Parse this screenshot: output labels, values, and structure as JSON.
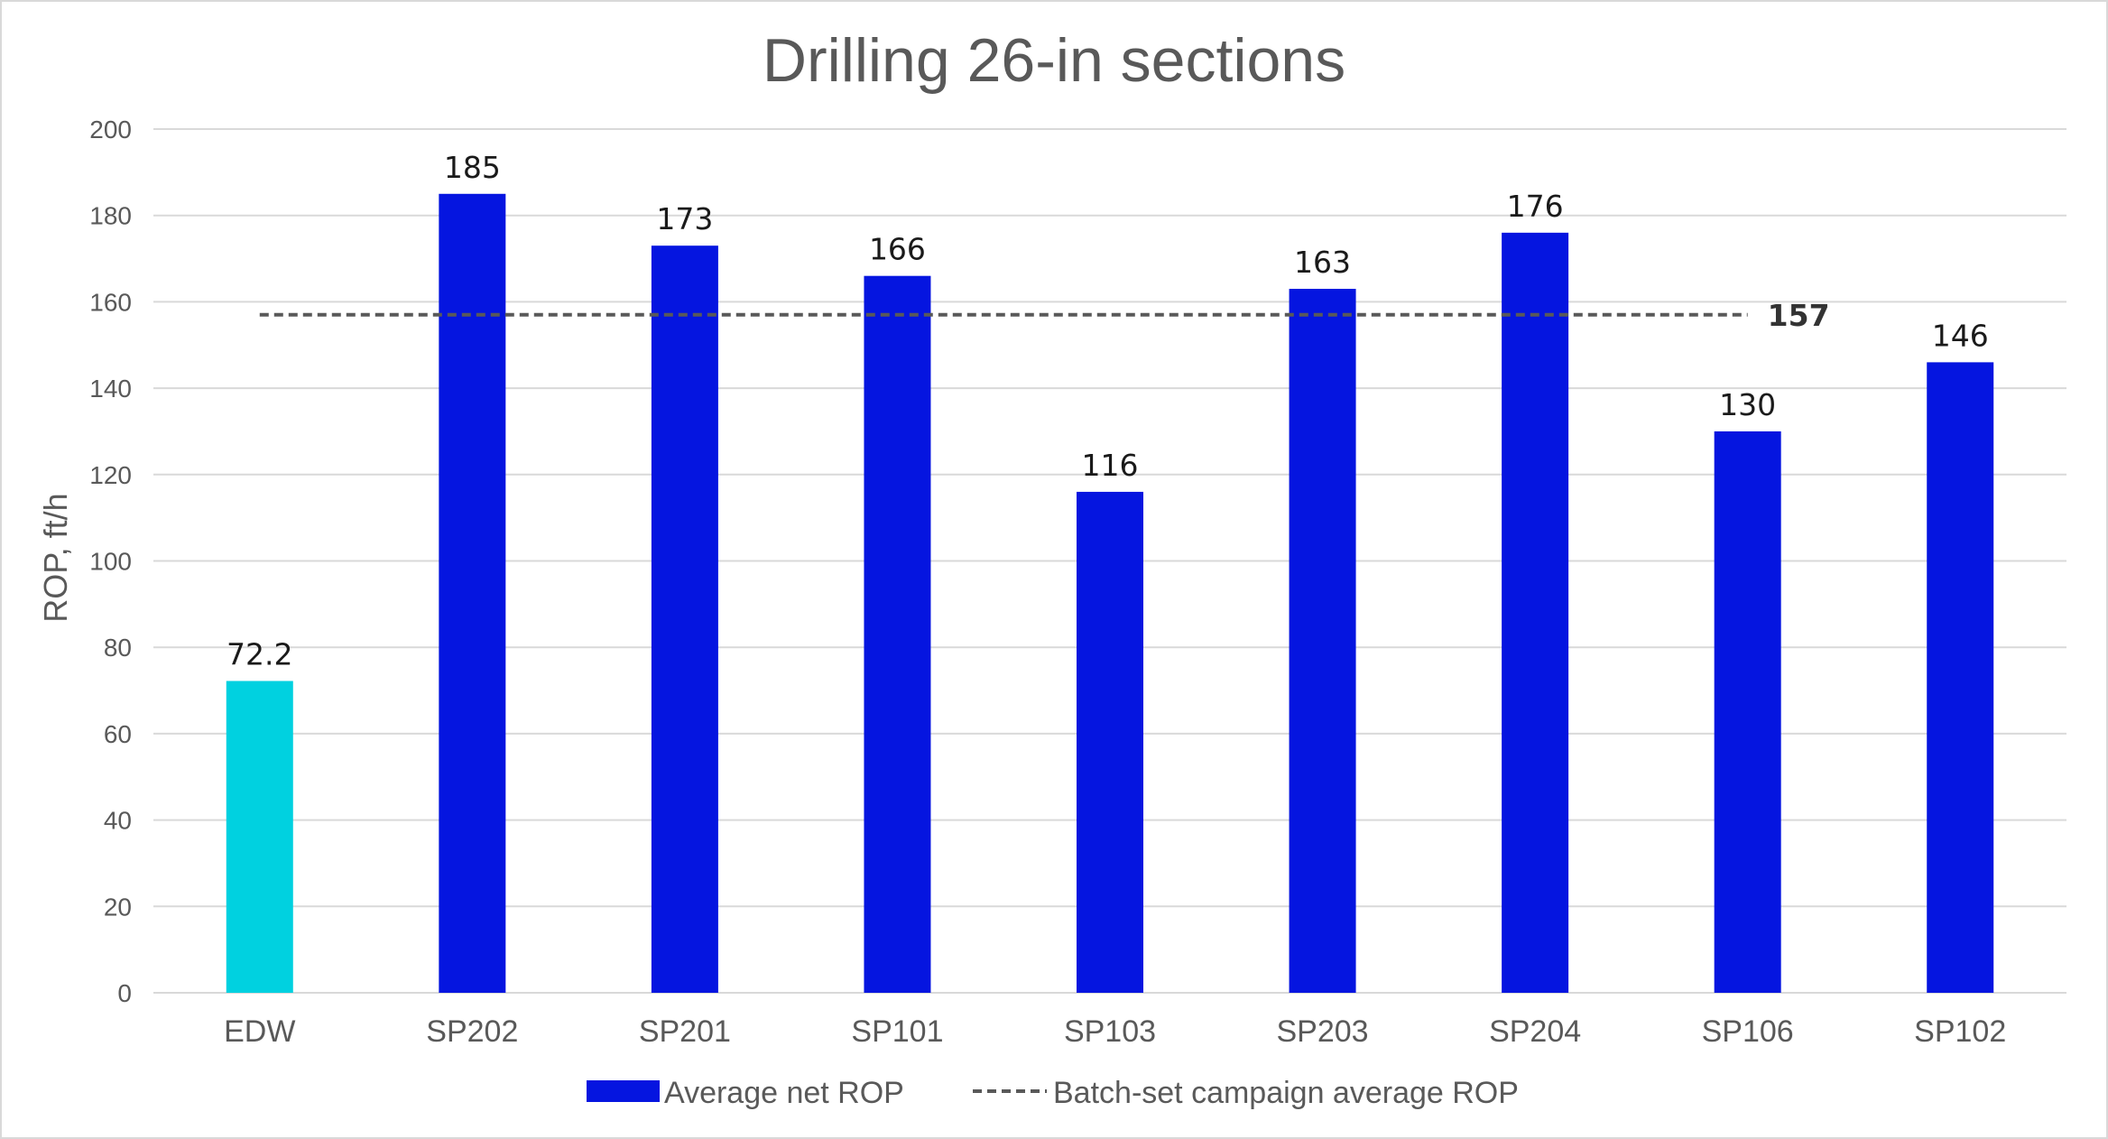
{
  "chart_data": {
    "type": "bar",
    "title": "Drilling 26-in sections",
    "xlabel": "",
    "ylabel": "ROP, ft/h",
    "ylim": [
      0,
      200
    ],
    "yticks": [
      0,
      20,
      40,
      60,
      80,
      100,
      120,
      140,
      160,
      180,
      200
    ],
    "categories": [
      "EDW",
      "SP202",
      "SP201",
      "SP101",
      "SP103",
      "SP203",
      "SP204",
      "SP106",
      "SP102"
    ],
    "series": [
      {
        "name": "Average net ROP",
        "values": [
          72.2,
          185,
          173,
          166,
          116,
          163,
          176,
          130,
          146
        ],
        "labels": [
          "72.2",
          "185",
          "173",
          "166",
          "116",
          "163",
          "176",
          "130",
          "146"
        ],
        "color": "#0515e0",
        "highlight": {
          "category": "EDW",
          "color": "#00d1e0"
        }
      }
    ],
    "reference_line": {
      "name": "Batch-set campaign average ROP",
      "value": 157,
      "label": "157",
      "style": "dashed",
      "color": "#595959"
    },
    "grid": true,
    "legend": "bottom"
  }
}
